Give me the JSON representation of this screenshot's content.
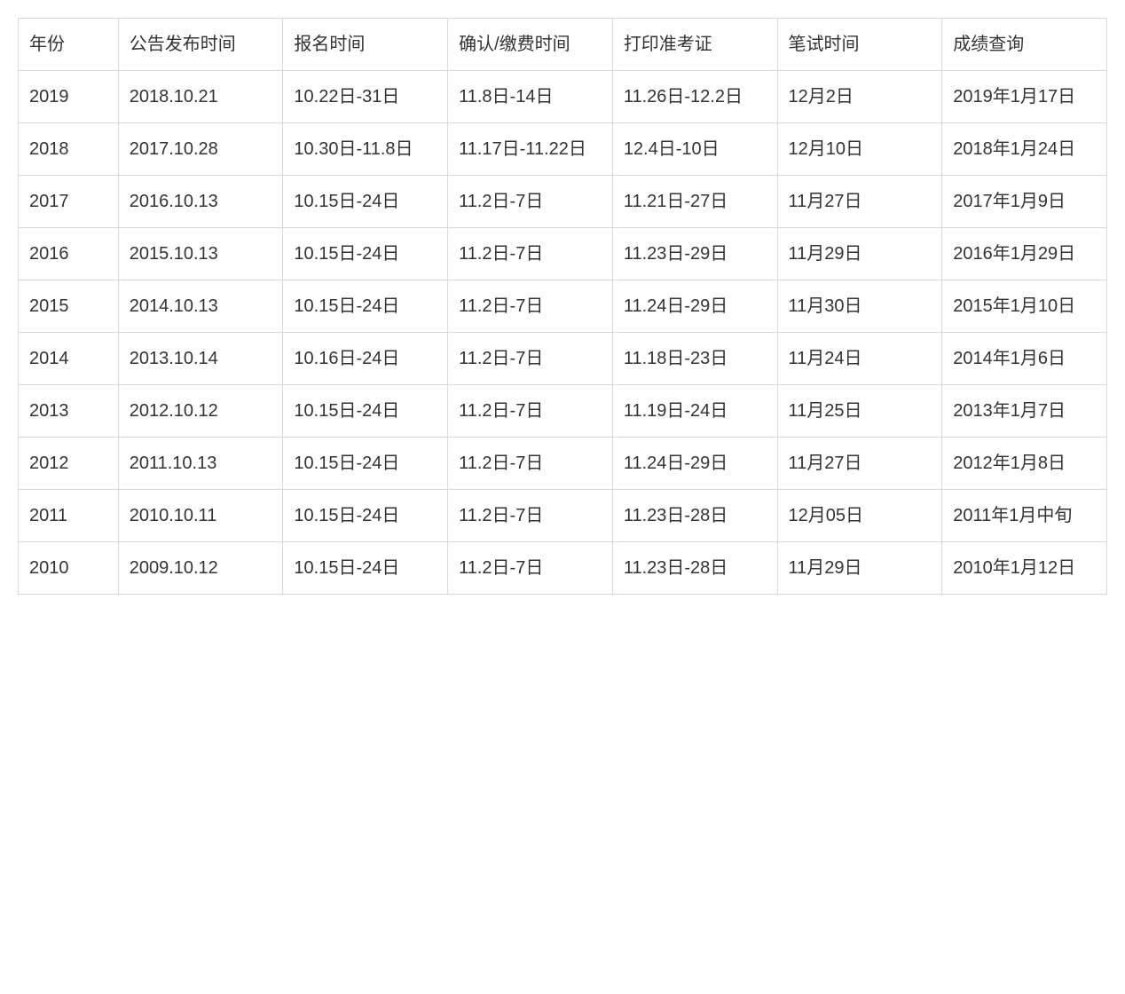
{
  "table": {
    "columns": [
      "年份",
      "公告发布时间",
      "报名时间",
      "确认/缴费时间",
      "打印准考证",
      "笔试时间",
      "成绩查询"
    ],
    "rows": [
      [
        "2019",
        "2018.10.21",
        "10.22日-31日",
        "11.8日-14日",
        "11.26日-12.2日",
        "12月2日",
        "2019年1月17日"
      ],
      [
        "2018",
        "2017.10.28",
        "10.30日-11.8日",
        "11.17日-11.22日",
        "12.4日-10日",
        "12月10日",
        "2018年1月24日"
      ],
      [
        "2017",
        "2016.10.13",
        "10.15日-24日",
        "11.2日-7日",
        "11.21日-27日",
        "11月27日",
        "2017年1月9日"
      ],
      [
        "2016",
        "2015.10.13",
        "10.15日-24日",
        "11.2日-7日",
        "11.23日-29日",
        "11月29日",
        "2016年1月29日"
      ],
      [
        "2015",
        "2014.10.13",
        "10.15日-24日",
        "11.2日-7日",
        "11.24日-29日",
        "11月30日",
        "2015年1月10日"
      ],
      [
        "2014",
        "2013.10.14",
        "10.16日-24日",
        "11.2日-7日",
        "11.18日-23日",
        "11月24日",
        "2014年1月6日"
      ],
      [
        "2013",
        "2012.10.12",
        "10.15日-24日",
        "11.2日-7日",
        "11.19日-24日",
        "11月25日",
        "2013年1月7日"
      ],
      [
        "2012",
        "2011.10.13",
        "10.15日-24日",
        "11.2日-7日",
        "11.24日-29日",
        "11月27日",
        "2012年1月8日"
      ],
      [
        "2011",
        "2010.10.11",
        "10.15日-24日",
        "11.2日-7日",
        "11.23日-28日",
        "12月05日",
        "2011年1月中旬"
      ],
      [
        "2010",
        "2009.10.12",
        "10.15日-24日",
        "11.2日-7日",
        "11.23日-28日",
        "11月29日",
        "2010年1月12日"
      ]
    ],
    "border_color": "#d9d9d9",
    "text_color": "#333333",
    "background_color": "#ffffff",
    "font_size": 20,
    "column_widths_pct": [
      8.8,
      14.5,
      14.5,
      14.5,
      14.5,
      14.5,
      14.5
    ]
  }
}
